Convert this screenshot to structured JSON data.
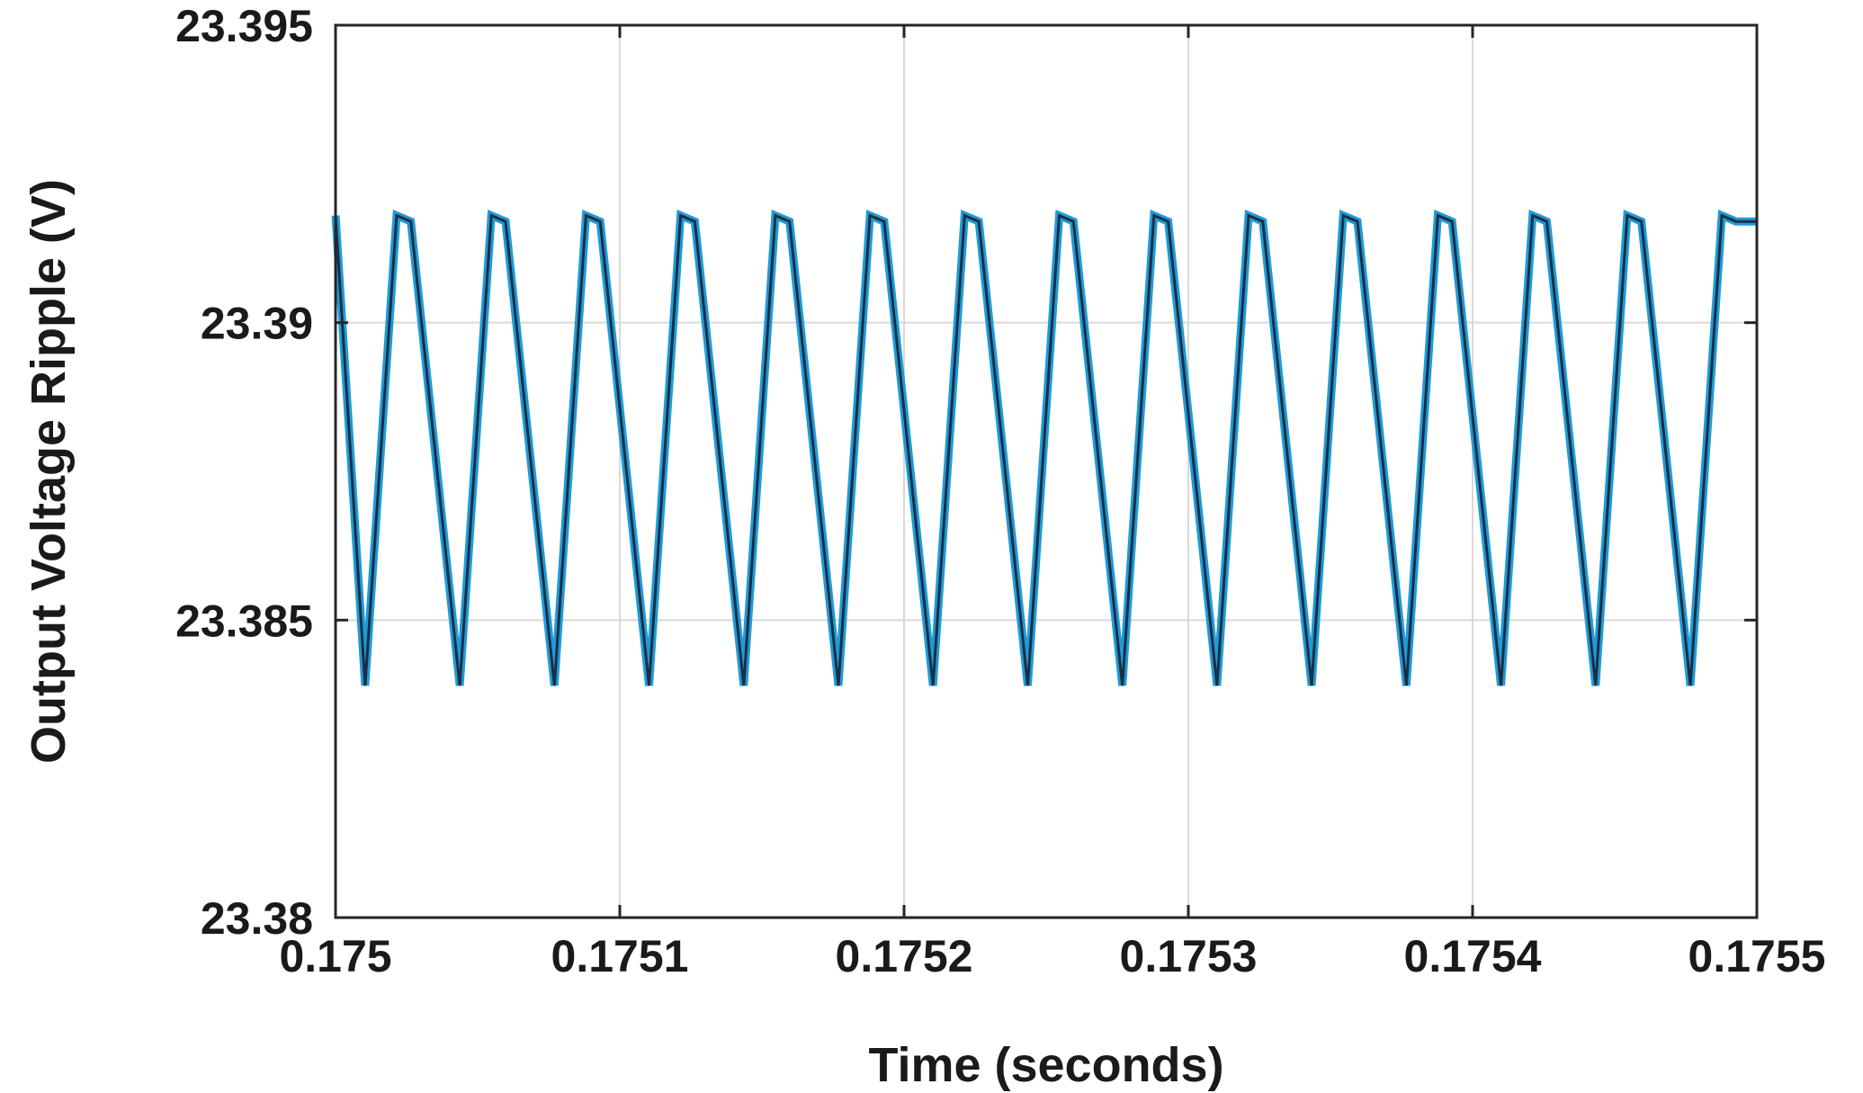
{
  "chart_data": {
    "type": "line",
    "title": "",
    "xlabel": "Time (seconds)",
    "ylabel": "Output Voltage Ripple (V)",
    "xlim": [
      0.175,
      0.1755
    ],
    "ylim": [
      23.38,
      23.395
    ],
    "grid": true,
    "x_ticks": [
      "0.175",
      "0.1751",
      "0.1752",
      "0.1753",
      "0.1754",
      "0.1755"
    ],
    "y_ticks": [
      "23.38",
      "23.385",
      "23.39",
      "23.395"
    ],
    "colors": {
      "outer_line": "#1f9bd7",
      "inner_line": "#1c2e44"
    },
    "series": [
      {
        "values_description_free": true,
        "x": [
          0.175,
          0.1750104,
          0.1750215,
          0.1750265,
          0.1750437,
          0.1750548,
          0.1750598,
          0.175077,
          0.1750881,
          0.1750931,
          0.1751103,
          0.1751214,
          0.1751264,
          0.1751436,
          0.1751547,
          0.1751597,
          0.1751769,
          0.175188,
          0.175193,
          0.1752102,
          0.1752213,
          0.1752263,
          0.1752435,
          0.1752546,
          0.1752596,
          0.1752768,
          0.1752879,
          0.1752929,
          0.1753101,
          0.1753212,
          0.1753262,
          0.1753434,
          0.1753545,
          0.1753595,
          0.1753767,
          0.1753878,
          0.1753928,
          0.17541,
          0.1754211,
          0.1754261,
          0.1754433,
          0.1754544,
          0.1754594,
          0.1754766,
          0.1754877,
          0.1754927,
          0.1755
        ],
        "y": [
          23.3918,
          23.3839,
          23.3918,
          23.3917,
          23.3839,
          23.3918,
          23.3917,
          23.3839,
          23.3918,
          23.3917,
          23.3839,
          23.3918,
          23.3917,
          23.3839,
          23.3918,
          23.3917,
          23.3839,
          23.3918,
          23.3917,
          23.3839,
          23.3918,
          23.3917,
          23.3839,
          23.3918,
          23.3917,
          23.3839,
          23.3918,
          23.3917,
          23.3839,
          23.3918,
          23.3917,
          23.3839,
          23.3918,
          23.3917,
          23.3839,
          23.3918,
          23.3917,
          23.3839,
          23.3918,
          23.3917,
          23.3839,
          23.3918,
          23.3917,
          23.3839,
          23.3918,
          23.3917,
          23.3917
        ]
      }
    ]
  }
}
